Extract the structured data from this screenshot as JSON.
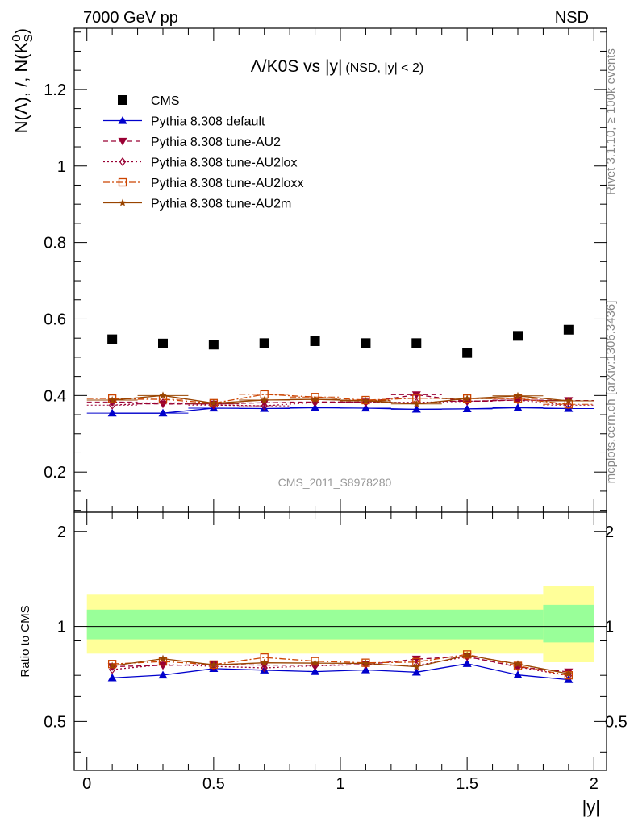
{
  "header": {
    "left": "7000 GeV pp",
    "right": "NSD"
  },
  "side": {
    "rivet": "Rivet 3.1.10, ≥ 100k events",
    "mcplots": "mcplots.cern.ch [arXiv:1306.3436]"
  },
  "colors": {
    "cms": "#000000",
    "default": "#0000cc",
    "au2": "#990033",
    "au2lox": "#990033",
    "au2loxx": "#cc4400",
    "au2m": "#994400",
    "band_inner": "#99ff99",
    "band_outer": "#ffff99"
  },
  "chart_data": [
    {
      "type": "scatter",
      "title_main": "Λ/K0S vs |y|",
      "title_sub": "(NSD, |y| < 2)",
      "ylabel": "N(Λ), /, N(K",
      "ylabel_sup": "0",
      "ylabel_sub": "S",
      "ylabel_close": ")",
      "watermark": "CMS_2011_S8978280",
      "xlim": [
        -0.05,
        2.05
      ],
      "ylim": [
        0.095,
        1.36
      ],
      "yticks": [
        0.2,
        0.4,
        0.6,
        0.8,
        1,
        1.2
      ],
      "ytick_labels": [
        "0.2",
        "0.4",
        "0.6",
        "0.8",
        "1",
        "1.2"
      ],
      "x": [
        0.1,
        0.3,
        0.5,
        0.7,
        0.9,
        1.1,
        1.3,
        1.5,
        1.7,
        1.9
      ],
      "series": [
        {
          "name": "CMS",
          "key": "cms",
          "marker": "square-filled",
          "line": "none",
          "values": [
            0.547,
            0.536,
            0.533,
            0.537,
            0.542,
            0.537,
            0.537,
            0.511,
            0.556,
            0.572
          ]
        },
        {
          "name": "Pythia 8.308 default",
          "key": "default",
          "marker": "triangle-up-filled",
          "line": "solid",
          "values": [
            0.354,
            0.354,
            0.367,
            0.366,
            0.368,
            0.367,
            0.364,
            0.365,
            0.368,
            0.366
          ]
        },
        {
          "name": "Pythia 8.308 tune-AU2",
          "key": "au2",
          "marker": "triangle-down-filled",
          "line": "dashed",
          "values": [
            0.383,
            0.378,
            0.378,
            0.381,
            0.383,
            0.383,
            0.402,
            0.385,
            0.388,
            0.387
          ]
        },
        {
          "name": "Pythia 8.308 tune-AU2lox",
          "key": "au2lox",
          "marker": "diamond-open",
          "line": "dotted",
          "values": [
            0.375,
            0.381,
            0.375,
            0.373,
            0.382,
            0.382,
            0.382,
            0.385,
            0.388,
            0.375
          ]
        },
        {
          "name": "Pythia 8.308 tune-AU2loxx",
          "key": "au2loxx",
          "marker": "square-open",
          "line": "dashdot",
          "values": [
            0.392,
            0.39,
            0.38,
            0.403,
            0.396,
            0.388,
            0.393,
            0.392,
            0.392,
            0.377
          ]
        },
        {
          "name": "Pythia 8.308 tune-AU2m",
          "key": "au2m",
          "marker": "star",
          "line": "solid",
          "values": [
            0.388,
            0.4,
            0.38,
            0.388,
            0.39,
            0.386,
            0.378,
            0.392,
            0.399,
            0.386
          ]
        }
      ]
    },
    {
      "type": "scatter",
      "ylabel": "Ratio to CMS",
      "xlabel": "|y|",
      "xlim": [
        -0.05,
        2.05
      ],
      "ylim": [
        0.35,
        2.3
      ],
      "yticks": [
        0.5,
        1,
        2
      ],
      "ytick_labels": [
        "0.5",
        "1",
        "2"
      ],
      "xticks": [
        0,
        0.5,
        1,
        1.5,
        2
      ],
      "xtick_labels": [
        "0",
        "0.5",
        "1",
        "1.5",
        "2"
      ],
      "x": [
        0.1,
        0.3,
        0.5,
        0.7,
        0.9,
        1.1,
        1.3,
        1.5,
        1.7,
        1.9
      ],
      "bands": [
        {
          "x": [
            0,
            1.8
          ],
          "outer": [
            0.82,
            1.26
          ],
          "inner": [
            0.91,
            1.13
          ]
        },
        {
          "x": [
            1.8,
            2.0
          ],
          "outer": [
            0.77,
            1.34
          ],
          "inner": [
            0.89,
            1.17
          ]
        }
      ],
      "series": [
        {
          "name": "Pythia 8.308 default",
          "key": "default",
          "marker": "triangle-up-filled",
          "line": "solid",
          "values": [
            0.687,
            0.701,
            0.735,
            0.727,
            0.719,
            0.728,
            0.716,
            0.762,
            0.702,
            0.678
          ]
        },
        {
          "name": "Pythia 8.308 tune-AU2",
          "key": "au2",
          "marker": "triangle-down-filled",
          "line": "dashed",
          "values": [
            0.746,
            0.752,
            0.757,
            0.754,
            0.753,
            0.757,
            0.788,
            0.803,
            0.744,
            0.718
          ]
        },
        {
          "name": "Pythia 8.308 tune-AU2lox",
          "key": "au2lox",
          "marker": "diamond-open",
          "line": "dotted",
          "values": [
            0.73,
            0.757,
            0.747,
            0.739,
            0.75,
            0.757,
            0.752,
            0.802,
            0.744,
            0.698
          ]
        },
        {
          "name": "Pythia 8.308 tune-AU2loxx",
          "key": "au2loxx",
          "marker": "square-open",
          "line": "dashdot",
          "values": [
            0.76,
            0.774,
            0.757,
            0.797,
            0.776,
            0.767,
            0.771,
            0.815,
            0.75,
            0.7
          ]
        },
        {
          "name": "Pythia 8.308 tune-AU2m",
          "key": "au2m",
          "marker": "star",
          "line": "solid",
          "values": [
            0.75,
            0.79,
            0.755,
            0.767,
            0.765,
            0.763,
            0.745,
            0.81,
            0.76,
            0.708
          ]
        }
      ]
    }
  ]
}
